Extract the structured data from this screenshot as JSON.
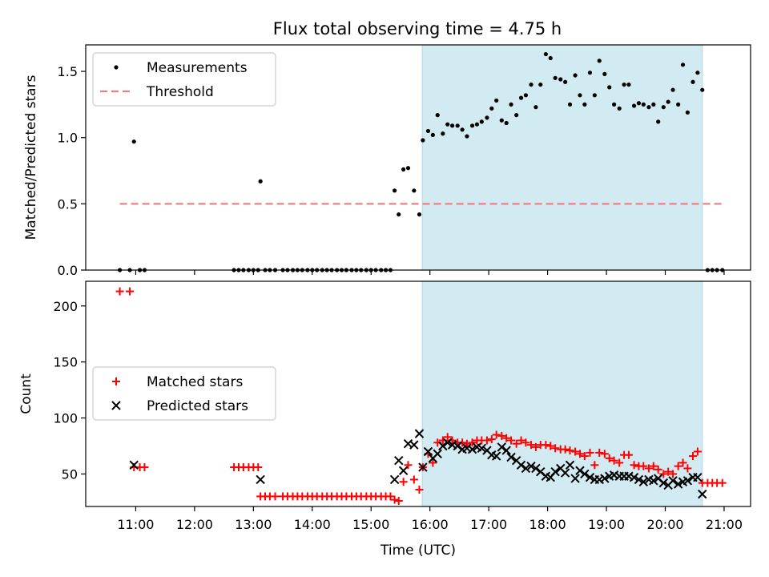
{
  "title": "Flux total observing time = 4.75 h",
  "chart_data": [
    {
      "type": "scatter",
      "panel": "top",
      "ylabel": "Matched/Predicted stars",
      "ylim": [
        0,
        1.7
      ],
      "yticks": [
        0.0,
        0.5,
        1.0,
        1.5
      ],
      "ytick_labels": [
        "0.0",
        "0.5",
        "1.0",
        "1.5"
      ],
      "legend_placement": "top-left",
      "shaded_span": {
        "start": 15.87,
        "end": 20.63,
        "color": "#add8e6"
      },
      "series": [
        {
          "name": "Measurements",
          "marker": "dot",
          "color": "#000000",
          "x": [
            10.73,
            10.9,
            10.97,
            11.07,
            11.15,
            12.67,
            12.75,
            12.83,
            12.92,
            13.0,
            13.08,
            13.12,
            13.2,
            13.28,
            13.37,
            13.5,
            13.58,
            13.67,
            13.75,
            13.83,
            13.92,
            14.0,
            14.08,
            14.17,
            14.25,
            14.33,
            14.42,
            14.5,
            14.58,
            14.67,
            14.75,
            14.83,
            14.92,
            15.0,
            15.08,
            15.17,
            15.25,
            15.33,
            15.4,
            15.47,
            15.55,
            15.63,
            15.73,
            15.82,
            15.88,
            15.97,
            16.05,
            16.13,
            16.22,
            16.3,
            16.38,
            16.47,
            16.55,
            16.63,
            16.72,
            16.8,
            16.88,
            16.97,
            17.05,
            17.13,
            17.22,
            17.3,
            17.38,
            17.47,
            17.55,
            17.63,
            17.72,
            17.8,
            17.88,
            17.97,
            18.05,
            18.13,
            18.22,
            18.3,
            18.38,
            18.47,
            18.55,
            18.63,
            18.72,
            18.8,
            18.88,
            18.97,
            19.05,
            19.13,
            19.22,
            19.3,
            19.38,
            19.47,
            19.55,
            19.63,
            19.72,
            19.8,
            19.88,
            19.97,
            20.05,
            20.13,
            20.22,
            20.3,
            20.38,
            20.47,
            20.55,
            20.63,
            20.72,
            20.8,
            20.88,
            20.97
          ],
          "y": [
            0,
            0,
            0.97,
            0,
            0,
            0,
            0,
            0,
            0,
            0,
            0,
            0.67,
            0,
            0,
            0,
            0,
            0,
            0,
            0,
            0,
            0,
            0,
            0,
            0,
            0,
            0,
            0,
            0,
            0,
            0,
            0,
            0,
            0,
            0,
            0,
            0,
            0,
            0,
            0.6,
            0.42,
            0.76,
            0.77,
            0.6,
            0.42,
            0.98,
            1.05,
            1.02,
            1.17,
            1.03,
            1.1,
            1.09,
            1.09,
            1.06,
            1.01,
            1.09,
            1.1,
            1.12,
            1.15,
            1.22,
            1.28,
            1.13,
            1.11,
            1.25,
            1.17,
            1.3,
            1.32,
            1.4,
            1.23,
            1.4,
            1.63,
            1.6,
            1.45,
            1.44,
            1.42,
            1.25,
            1.47,
            1.32,
            1.25,
            1.49,
            1.32,
            1.58,
            1.48,
            1.38,
            1.25,
            1.22,
            1.4,
            1.4,
            1.24,
            1.26,
            1.25,
            1.23,
            1.25,
            1.12,
            1.23,
            1.27,
            1.36,
            1.25,
            1.55,
            1.19,
            1.42,
            1.49,
            1.36,
            0,
            0,
            0,
            0
          ]
        },
        {
          "name": "Threshold",
          "style": "dashed",
          "color": "#f08080",
          "x": [
            10.73,
            20.97
          ],
          "y": [
            0.5,
            0.5
          ]
        }
      ]
    },
    {
      "type": "scatter",
      "panel": "bottom",
      "xlabel": "Time (UTC)",
      "ylabel": "Count",
      "xlim": [
        10.15,
        21.45
      ],
      "ylim": [
        21,
        222
      ],
      "xticks": [
        "11:00",
        "12:00",
        "13:00",
        "14:00",
        "15:00",
        "16:00",
        "17:00",
        "18:00",
        "19:00",
        "20:00",
        "21:00"
      ],
      "ytick_labels": [
        "50",
        "100",
        "150",
        "200"
      ],
      "legend_placement": "center-left",
      "shaded_span": {
        "start": 15.87,
        "end": 20.63,
        "color": "#add8e6"
      },
      "series": [
        {
          "name": "Matched stars",
          "marker": "plus",
          "color": "#ff0000",
          "x": [
            10.73,
            10.9,
            10.97,
            11.07,
            11.15,
            12.67,
            12.75,
            12.83,
            12.92,
            13.0,
            13.08,
            13.12,
            13.2,
            13.28,
            13.37,
            13.5,
            13.58,
            13.67,
            13.75,
            13.83,
            13.92,
            14.0,
            14.08,
            14.17,
            14.25,
            14.33,
            14.42,
            14.5,
            14.58,
            14.67,
            14.75,
            14.83,
            14.92,
            15.0,
            15.08,
            15.17,
            15.25,
            15.33,
            15.4,
            15.47,
            15.55,
            15.63,
            15.73,
            15.82,
            15.88,
            15.97,
            16.05,
            16.13,
            16.22,
            16.3,
            16.38,
            16.47,
            16.55,
            16.63,
            16.72,
            16.8,
            16.88,
            16.97,
            17.05,
            17.13,
            17.22,
            17.3,
            17.38,
            17.47,
            17.55,
            17.63,
            17.72,
            17.8,
            17.88,
            17.97,
            18.05,
            18.13,
            18.22,
            18.3,
            18.38,
            18.47,
            18.55,
            18.63,
            18.72,
            18.8,
            18.88,
            18.97,
            19.05,
            19.13,
            19.22,
            19.3,
            19.38,
            19.47,
            19.55,
            19.63,
            19.72,
            19.8,
            19.88,
            19.97,
            20.05,
            20.13,
            20.22,
            20.3,
            20.38,
            20.47,
            20.55,
            20.63,
            20.72,
            20.8,
            20.88,
            20.97
          ],
          "y": [
            213,
            213,
            56,
            56,
            56,
            56,
            56,
            56,
            56,
            56,
            56,
            30,
            30,
            30,
            30,
            30,
            30,
            30,
            30,
            30,
            30,
            30,
            30,
            30,
            30,
            30,
            30,
            30,
            30,
            30,
            30,
            30,
            30,
            30,
            30,
            30,
            30,
            30,
            27,
            26,
            43,
            58,
            45,
            36,
            56,
            68,
            60,
            78,
            80,
            83,
            80,
            78,
            78,
            77,
            78,
            80,
            80,
            80,
            81,
            85,
            84,
            82,
            80,
            77,
            80,
            78,
            76,
            74,
            76,
            76,
            75,
            73,
            72,
            72,
            71,
            70,
            68,
            66,
            69,
            58,
            69,
            68,
            64,
            62,
            60,
            67,
            67,
            58,
            57,
            57,
            55,
            57,
            54,
            50,
            52,
            50,
            57,
            60,
            55,
            66,
            70,
            42,
            42,
            42,
            42,
            42
          ]
        },
        {
          "name": "Predicted stars",
          "marker": "x",
          "color": "#000000",
          "x": [
            10.97,
            13.12,
            15.4,
            15.47,
            15.55,
            15.63,
            15.73,
            15.82,
            15.88,
            15.97,
            16.05,
            16.13,
            16.22,
            16.3,
            16.38,
            16.47,
            16.55,
            16.63,
            16.72,
            16.8,
            16.88,
            16.97,
            17.05,
            17.13,
            17.22,
            17.3,
            17.38,
            17.47,
            17.55,
            17.63,
            17.72,
            17.8,
            17.88,
            17.97,
            18.05,
            18.13,
            18.22,
            18.3,
            18.38,
            18.47,
            18.55,
            18.63,
            18.72,
            18.8,
            18.88,
            18.97,
            19.05,
            19.13,
            19.22,
            19.3,
            19.38,
            19.47,
            19.55,
            19.63,
            19.72,
            19.8,
            19.88,
            19.97,
            20.05,
            20.13,
            20.22,
            20.3,
            20.38,
            20.47,
            20.55,
            20.63
          ],
          "y": [
            58,
            45,
            45,
            62,
            53,
            77,
            76,
            86,
            56,
            70,
            64,
            68,
            75,
            78,
            76,
            75,
            72,
            73,
            72,
            74,
            73,
            71,
            67,
            66,
            74,
            71,
            65,
            62,
            58,
            55,
            57,
            55,
            52,
            48,
            47,
            52,
            55,
            51,
            58,
            46,
            53,
            50,
            47,
            45,
            45,
            46,
            48,
            49,
            48,
            48,
            48,
            47,
            45,
            43,
            45,
            44,
            46,
            42,
            40,
            44,
            41,
            43,
            44,
            47,
            47,
            32
          ]
        }
      ]
    }
  ]
}
